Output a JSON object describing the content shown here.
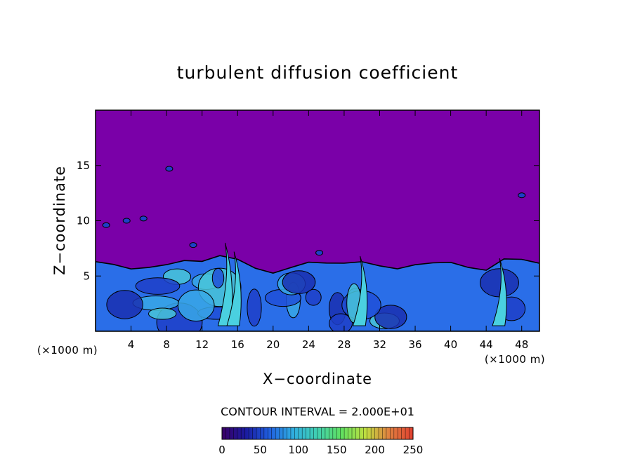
{
  "chart_data": {
    "type": "heatmap",
    "title": "turbulent diffusion coefficient",
    "xlabel": "X−coordinate",
    "ylabel": "Z−coordinate",
    "x_unit": "(×1000 m)",
    "y_unit": "(×1000 m)",
    "xlim": [
      0,
      50
    ],
    "ylim": [
      0,
      20
    ],
    "x_ticks": [
      4,
      8,
      12,
      16,
      20,
      24,
      28,
      32,
      36,
      40,
      44,
      48
    ],
    "y_ticks": [
      5,
      10,
      15
    ],
    "contour_interval_text": "CONTOUR INTERVAL = 2.000E+01",
    "contour_interval": 20,
    "colorbar": {
      "min": 0,
      "max": 250,
      "ticks": [
        0,
        50,
        100,
        150,
        200,
        250
      ],
      "colors": [
        "#3a0066",
        "#1a1aa0",
        "#2060e0",
        "#30b0e0",
        "#40d0b0",
        "#60e060",
        "#c0e040",
        "#e08040",
        "#e04030"
      ]
    },
    "background_value_color": "#7a00a8",
    "turbulent_layer": {
      "description_values": "boundary layer top height (x1000 m) vs X (x1000 m)",
      "x": [
        0,
        2,
        4,
        6,
        8,
        10,
        12,
        14,
        16,
        18,
        20,
        22,
        24,
        26,
        28,
        30,
        32,
        34,
        36,
        38,
        40,
        42,
        44,
        46,
        48,
        50
      ],
      "top_z": [
        6.3,
        5.8,
        5.7,
        6.0,
        5.9,
        6.2,
        6.5,
        7.0,
        6.3,
        5.6,
        5.5,
        5.8,
        6.0,
        6.2,
        6.4,
        6.2,
        5.7,
        5.8,
        6.2,
        6.0,
        6.1,
        6.0,
        5.6,
        6.3,
        6.5,
        6.4
      ]
    }
  }
}
